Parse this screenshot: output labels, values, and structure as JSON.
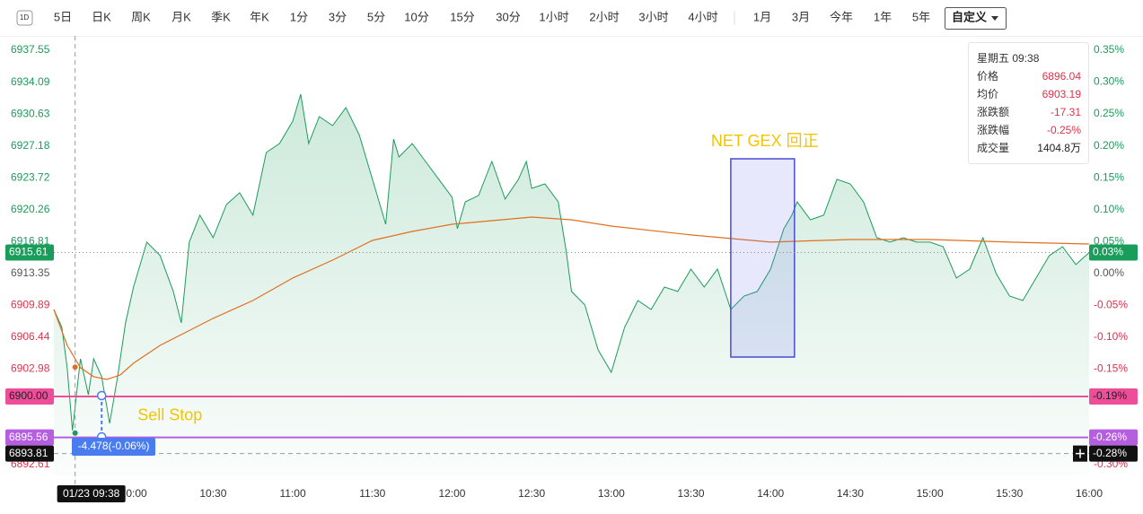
{
  "toolbar": {
    "items": [
      "1D",
      "5日",
      "日K",
      "周K",
      "月K",
      "季K",
      "年K",
      "1分",
      "3分",
      "5分",
      "10分",
      "15分",
      "30分",
      "1小时",
      "2小时",
      "3小时",
      "4小时",
      "1月",
      "3月",
      "今年",
      "1年",
      "5年"
    ],
    "custom": "自定义"
  },
  "chart_data": {
    "type": "line",
    "xlim": [
      "09:30",
      "16:00"
    ],
    "xticks": [
      "10:00",
      "10:30",
      "11:00",
      "11:30",
      "12:00",
      "12:30",
      "13:00",
      "13:30",
      "14:00",
      "14:30",
      "15:00",
      "15:30",
      "16:00"
    ],
    "ylim": [
      6891.44,
      6939.11
    ],
    "yticks": [
      6937.55,
      6934.09,
      6930.63,
      6927.18,
      6923.72,
      6920.26,
      6916.81,
      6913.35,
      6909.89,
      6906.44,
      6902.98,
      6892.61
    ],
    "y2lim": [
      -0.3169,
      0.3725
    ],
    "y2ticks": [
      {
        "value": 0.35,
        "label": "0.35%"
      },
      {
        "value": 0.3,
        "label": "0.30%"
      },
      {
        "value": 0.25,
        "label": "0.25%"
      },
      {
        "value": 0.2,
        "label": "0.20%"
      },
      {
        "value": 0.15,
        "label": "0.15%"
      },
      {
        "value": 0.1,
        "label": "0.10%"
      },
      {
        "value": 0.05,
        "label": "0.05%"
      },
      {
        "value": 0,
        "label": "0.00%"
      },
      {
        "value": -0.05,
        "label": "-0.05%"
      },
      {
        "value": -0.1,
        "label": "-0.10%"
      },
      {
        "value": -0.15,
        "label": "-0.15%"
      },
      {
        "value": -0.3,
        "label": "-0.30%"
      }
    ],
    "grid": false,
    "series": [
      {
        "color": "#1a9c5b",
        "fill": true,
        "x": [
          "09:30",
          "09:33",
          "09:35",
          "09:37",
          "09:40",
          "09:43",
          "09:45",
          "09:48",
          "09:51",
          "09:54",
          "09:57",
          "10:00",
          "10:05",
          "10:10",
          "10:15",
          "10:18",
          "10:21",
          "10:25",
          "10:30",
          "10:35",
          "10:40",
          "10:45",
          "10:50",
          "10:55",
          "11:00",
          "11:03",
          "11:06",
          "11:10",
          "11:15",
          "11:20",
          "11:25",
          "11:30",
          "11:35",
          "11:38",
          "11:40",
          "11:45",
          "11:50",
          "11:55",
          "12:00",
          "12:02",
          "12:05",
          "12:10",
          "12:15",
          "12:20",
          "12:25",
          "12:28",
          "12:30",
          "12:35",
          "12:40",
          "12:43",
          "12:45",
          "12:50",
          "12:55",
          "13:00",
          "13:05",
          "13:10",
          "13:15",
          "13:20",
          "13:25",
          "13:30",
          "13:35",
          "13:40",
          "13:45",
          "13:50",
          "13:55",
          "14:00",
          "14:05",
          "14:08",
          "14:10",
          "14:15",
          "14:20",
          "14:25",
          "14:30",
          "14:35",
          "14:40",
          "14:45",
          "14:50",
          "14:55",
          "15:00",
          "15:05",
          "15:10",
          "15:15",
          "15:20",
          "15:25",
          "15:30",
          "15:35",
          "15:40",
          "15:45",
          "15:50",
          "15:55",
          "16:00"
        ],
        "values": [
          6909.44,
          6907.49,
          6903.12,
          6896.31,
          6904.09,
          6900.2,
          6904.09,
          6902.15,
          6897.09,
          6902.15,
          6907.98,
          6911.87,
          6916.74,
          6915.28,
          6911.39,
          6907.98,
          6916.74,
          6919.66,
          6917.22,
          6920.82,
          6922.09,
          6919.66,
          6926.46,
          6927.44,
          6929.87,
          6932.79,
          6927.44,
          6930.35,
          6929.38,
          6931.33,
          6928.41,
          6923.55,
          6918.68,
          6927.92,
          6925.98,
          6927.44,
          6925.49,
          6923.55,
          6921.6,
          6918.2,
          6921.11,
          6921.8,
          6925.49,
          6921.41,
          6923.55,
          6925.49,
          6922.57,
          6923.06,
          6921.11,
          6915.76,
          6911.39,
          6909.93,
          6905.06,
          6902.63,
          6907.49,
          6910.41,
          6909.44,
          6911.87,
          6911.39,
          6913.82,
          6911.87,
          6913.82,
          6909.44,
          6910.9,
          6911.39,
          6913.82,
          6918.2,
          6919.66,
          6921.11,
          6919.17,
          6919.66,
          6923.55,
          6923.06,
          6921.11,
          6917.22,
          6916.74,
          6917.22,
          6916.74,
          6916.74,
          6916.25,
          6912.85,
          6913.82,
          6917.22,
          6913.33,
          6910.9,
          6910.41,
          6912.85,
          6915.28,
          6916.25,
          6914.31,
          6915.61
        ]
      },
      {
        "color": "#e07020",
        "fill": false,
        "x": [
          "09:30",
          "09:35",
          "09:40",
          "09:45",
          "09:50",
          "09:55",
          "10:00",
          "10:10",
          "10:20",
          "10:30",
          "10:45",
          "11:00",
          "11:15",
          "11:30",
          "11:45",
          "12:00",
          "12:15",
          "12:30",
          "12:45",
          "13:00",
          "13:30",
          "14:00",
          "14:30",
          "15:00",
          "15:30",
          "16:00"
        ],
        "values": [
          6909.44,
          6905.55,
          6903.12,
          6902.15,
          6901.85,
          6902.34,
          6903.61,
          6905.55,
          6907.01,
          6908.47,
          6910.41,
          6912.85,
          6914.79,
          6916.93,
          6917.9,
          6918.68,
          6919.07,
          6919.46,
          6919.17,
          6918.49,
          6917.52,
          6916.74,
          6917.03,
          6917.03,
          6916.74,
          6916.54
        ]
      }
    ],
    "last": {
      "value": 6915.61,
      "label": "6915.61",
      "pct_label": "0.03%"
    },
    "levels": [
      {
        "value": 6900,
        "label": "6900.00",
        "pct_label": "-0.19%",
        "color": "#ee4d9a"
      },
      {
        "value": 6895.56,
        "label": "6895.56",
        "pct_label": "-0.26%",
        "color": "#b65ee0"
      }
    ],
    "crosshair": {
      "x": "09:38",
      "x_label": "01/23 09:38",
      "y": {
        "value": 6893.81,
        "label": "6893.81"
      },
      "y2_label": "-0.28%"
    },
    "measure": {
      "x": "09:48",
      "y": [
        6900.1,
        6895.62
      ],
      "label": "-4.478(-0.06%)"
    },
    "annotations": [
      {
        "text": "Sell Stop",
        "x": "09:48",
        "y": 6897.9
      },
      {
        "text": "NET GEX 回正",
        "x": [
          "13:45",
          "14:09"
        ],
        "y": [
          6904.28,
          6925.78
        ]
      }
    ],
    "tooltip": {
      "header": "星期五 09:38",
      "rows": [
        {
          "label": "价格",
          "value": 6896.04
        },
        {
          "label": "均价",
          "value": 6903.19
        },
        {
          "label": "涨跌额",
          "value": -17.31
        },
        {
          "label": "涨跌幅",
          "value": -0.25,
          "value_label": "-0.25%"
        },
        {
          "label": "成交量",
          "value_label": "1404.8万"
        }
      ]
    }
  }
}
